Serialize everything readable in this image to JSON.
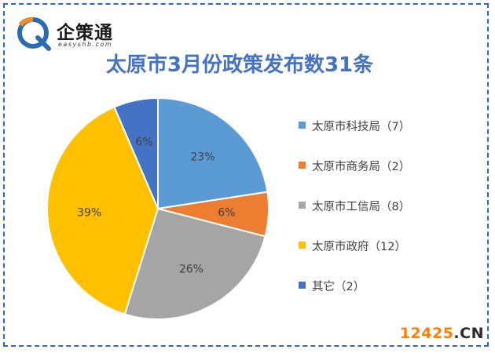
{
  "logo": {
    "name": "企策通",
    "sub": "easyshb.com"
  },
  "watermark": {
    "number": "12425",
    "domain": ".CN"
  },
  "chart_data": {
    "type": "pie",
    "title": "太原市3月份政策发布数31条",
    "slices": [
      {
        "label": "太原市科技局（7）",
        "value": 7,
        "percent_label": "23%",
        "color": "#5b9bd5"
      },
      {
        "label": "太原市商务局（2）",
        "value": 2,
        "percent_label": "6%",
        "color": "#ed7d31"
      },
      {
        "label": "太原市工信局（8）",
        "value": 8,
        "percent_label": "26%",
        "color": "#a5a5a5"
      },
      {
        "label": "太原市政府（12）",
        "value": 12,
        "percent_label": "39%",
        "color": "#ffc000"
      },
      {
        "label": "其它（2）",
        "value": 2,
        "percent_label": "6%",
        "color": "#4472c4"
      }
    ],
    "legend_position": "right"
  }
}
